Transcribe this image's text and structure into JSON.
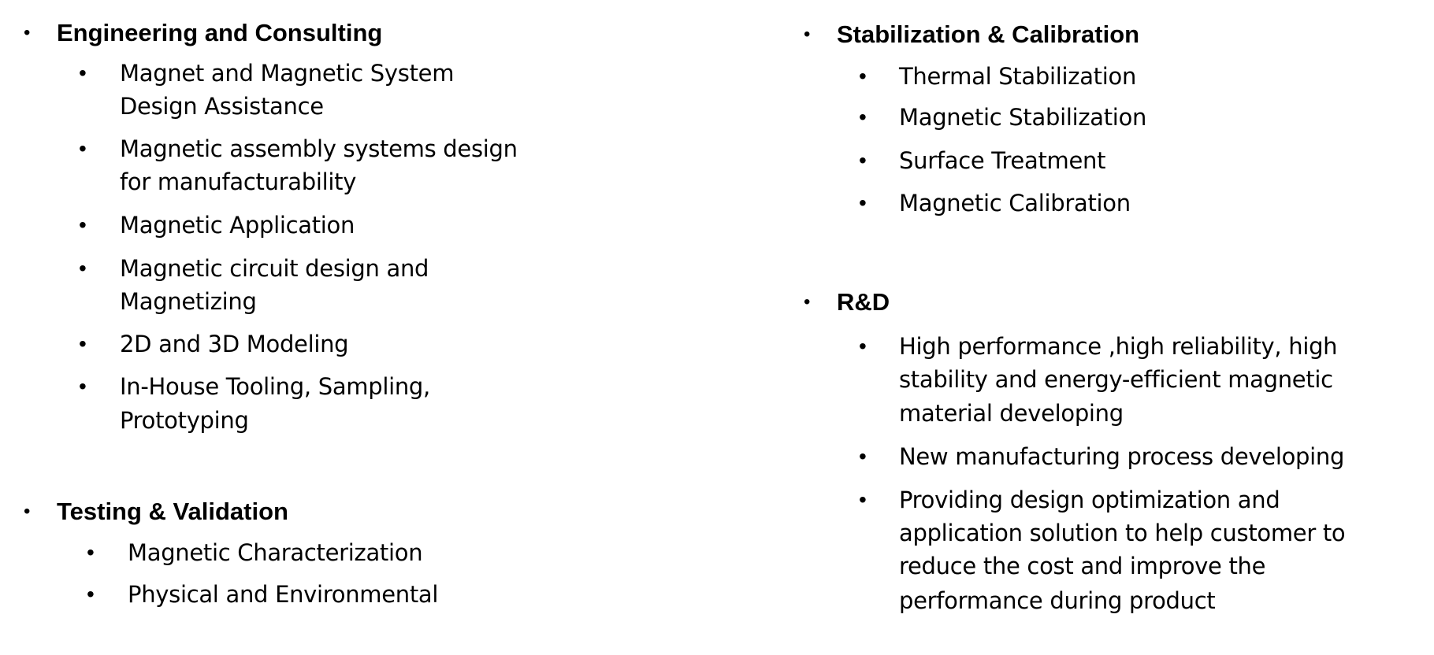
{
  "left": {
    "sections": [
      {
        "heading": "Engineering and Consulting",
        "items": [
          {
            "lines": [
              "Magnet and Magnetic System",
              "Design Assistance"
            ]
          },
          {
            "lines": [
              "Magnetic assembly systems design",
              "for manufacturability"
            ]
          },
          {
            "lines": [
              "Magnetic Application"
            ]
          },
          {
            "lines": [
              "Magnetic circuit design and",
              "Magnetizing"
            ]
          },
          {
            "lines": [
              "2D and 3D Modeling"
            ]
          },
          {
            "lines": [
              "In-House Tooling, Sampling,",
              "Prototyping"
            ]
          }
        ]
      },
      {
        "heading": "Testing & Validation",
        "items": [
          {
            "lines": [
              "Magnetic Characterization"
            ]
          },
          {
            "lines": [
              "Physical and Environmental"
            ]
          }
        ]
      }
    ]
  },
  "right": {
    "sections": [
      {
        "heading": "Stabilization & Calibration",
        "items": [
          {
            "lines": [
              "Thermal Stabilization"
            ]
          },
          {
            "lines": [
              "Magnetic Stabilization"
            ]
          },
          {
            "lines": [
              "Surface Treatment"
            ]
          },
          {
            "lines": [
              "Magnetic Calibration"
            ]
          }
        ]
      },
      {
        "heading": "R&D",
        "items": [
          {
            "lines": [
              "High performance ,high reliability, high",
              "stability and energy-efficient magnetic",
              "material developing"
            ]
          },
          {
            "lines": [
              "New manufacturing process developing"
            ]
          },
          {
            "lines": [
              "Providing design optimization and",
              "application solution to help customer to",
              "reduce the cost and improve the",
              "performance during product"
            ]
          }
        ]
      }
    ]
  },
  "bullet": "•"
}
